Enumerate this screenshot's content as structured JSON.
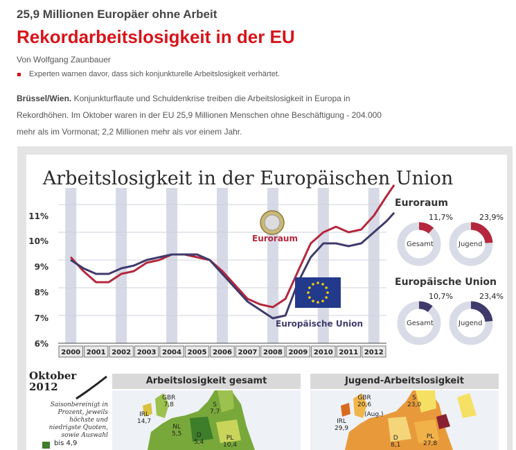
{
  "article": {
    "kicker": "25,9 Millionen Europäer ohne Arbeit",
    "headline": "Rekordarbeitslosigkeit in der EU",
    "byline": "Von Wolfgang Zaunbauer",
    "teaser": "Experten warnen davor, dass sich konjunkturelle Arbeitslosigkeit verhärtet.",
    "dateline": "Brüssel/Wien.",
    "lead": " Konjunkturflaute und Schuldenkrise treiben die Arbeitslosigkeit in Europa in Rekordhöhen. Im Oktober waren in der EU 25,9 Millionen Menschen ohne Beschäftigung - 204.000 mehr als im Vormonat; 2,2 Millionen mehr als vor einem Jahr."
  },
  "graphic": {
    "title": "Arbeitslosigkeit in der Europäischen Union",
    "y_ticks": [
      "11%",
      "10%",
      "9%",
      "8%",
      "7%",
      "6%"
    ],
    "years": [
      "2000",
      "2001",
      "2002",
      "2003",
      "2004",
      "2005",
      "2006",
      "2007",
      "2008",
      "2009",
      "2010",
      "2011",
      "2012"
    ],
    "series_labels": {
      "euroraum": "Euroraum",
      "eu": "Europäische Union"
    },
    "colors": {
      "euroraum": "#b5273c",
      "eu": "#3f3a6b",
      "band": "#d7dae6",
      "ring": "#d9dce6"
    },
    "donuts": {
      "euroraum": {
        "heading": "Euroraum",
        "gesamt": {
          "label": "Gesamt",
          "value": "11,7%",
          "fraction": 0.117
        },
        "jugend": {
          "label": "Jugend",
          "value": "23,9%",
          "fraction": 0.239
        }
      },
      "eu": {
        "heading": "Europäische Union",
        "gesamt": {
          "label": "Gesamt",
          "value": "10,7%",
          "fraction": 0.107
        },
        "jugend": {
          "label": "Jugend",
          "value": "23,4%",
          "fraction": 0.234
        }
      }
    },
    "october": {
      "line1": "Oktober",
      "line2": "2012"
    },
    "legend_note": "Saisonbereinigt in Prozent, jeweils höchste und niedrigste Quoten, sowie Auswahl",
    "legend_first": "bis 4,9",
    "maps": {
      "gesamt": {
        "heading": "Arbeitslosigkeit gesamt",
        "labels": [
          {
            "code": "GBR",
            "value": "7,8"
          },
          {
            "code": "IRL",
            "value": "14,7"
          },
          {
            "code": "S",
            "value": "7,7"
          },
          {
            "code": "NL",
            "value": "5,5"
          },
          {
            "code": "D",
            "value": "5,4"
          },
          {
            "code": "PL",
            "value": "10,4"
          }
        ]
      },
      "jugend": {
        "heading": "Jugend-Arbeitslosigkeit",
        "labels": [
          {
            "code": "GBR",
            "value": "20,6"
          },
          {
            "code": "(Aug.)",
            "value": ""
          },
          {
            "code": "IRL",
            "value": "29,9"
          },
          {
            "code": "S",
            "value": "23,0"
          },
          {
            "code": "D",
            "value": "8,1"
          },
          {
            "code": "PL",
            "value": "27,8"
          }
        ]
      }
    },
    "gbr_note": "(Aug.)"
  },
  "chart_data": {
    "type": "line",
    "x": [
      2000,
      2000.5,
      2001,
      2001.5,
      2002,
      2002.5,
      2003,
      2003.5,
      2004,
      2004.5,
      2005,
      2005.5,
      2006,
      2006.5,
      2007,
      2007.5,
      2008,
      2008.5,
      2009,
      2009.5,
      2010,
      2010.5,
      2011,
      2011.5,
      2012,
      2012.5,
      2012.8
    ],
    "series": [
      {
        "name": "Euroraum",
        "values": [
          9.1,
          8.6,
          8.2,
          8.2,
          8.5,
          8.6,
          8.9,
          9.0,
          9.2,
          9.2,
          9.1,
          9.0,
          8.6,
          8.1,
          7.6,
          7.4,
          7.3,
          7.6,
          8.6,
          9.6,
          10.0,
          10.2,
          10.0,
          10.1,
          10.6,
          11.3,
          11.7
        ]
      },
      {
        "name": "Europäische Union",
        "values": [
          9.0,
          8.7,
          8.5,
          8.5,
          8.7,
          8.8,
          9.0,
          9.1,
          9.2,
          9.2,
          9.2,
          9.0,
          8.5,
          8.0,
          7.5,
          7.2,
          6.9,
          7.0,
          8.2,
          9.1,
          9.6,
          9.6,
          9.5,
          9.6,
          10.0,
          10.4,
          10.7
        ]
      }
    ],
    "ylim": [
      6,
      11.8
    ],
    "y_ticks": [
      6,
      7,
      8,
      9,
      10,
      11
    ]
  }
}
